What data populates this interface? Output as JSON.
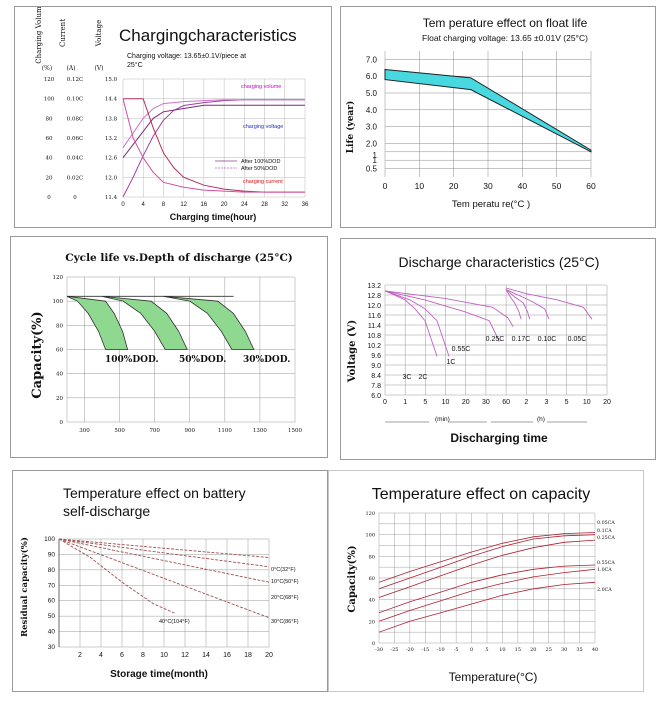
{
  "panels": {
    "charging": {
      "title": "Chargingcharacteristics",
      "subtitle_line1": "Charging voltage: 13.65±0.1V/piece at",
      "subtitle_line2": "25°C",
      "axis_header": [
        "Charging Volume",
        "Current",
        "Voltage"
      ],
      "axis_units": [
        "(%)",
        "(A)",
        "(V)"
      ],
      "y_volume_ticks": [
        "120",
        "100",
        "80",
        "60",
        "40",
        "20",
        "0"
      ],
      "y_current_ticks": [
        "0.12C",
        "0.10C",
        "0.08C",
        "0.06C",
        "0.04C",
        "0.02C",
        "0"
      ],
      "y_voltage_ticks": [
        "15.0",
        "14.4",
        "13.8",
        "13.2",
        "12.6",
        "12.0",
        "11.4"
      ],
      "x_ticks": [
        "0",
        "4",
        "8",
        "12",
        "16",
        "20",
        "24",
        "28",
        "32",
        "36"
      ],
      "xlabel": "Charging time(hour)",
      "series_labels": {
        "volume": "charging volume",
        "voltage": "charging voltage",
        "current": "charging current"
      },
      "legend": [
        "After 100%DOD",
        "After 50%DOD"
      ]
    },
    "float_life": {
      "title": "Tem perature    effect  on  float  life",
      "subtitle": "Float charging voltage:  13.65 ±0.01V (25°C)",
      "ylabel": "Life (year)",
      "y_ticks": [
        "7.0",
        "6.0",
        "5.0",
        "4.0",
        "3.0",
        "2.0",
        "1",
        "1",
        "0.5"
      ],
      "x_ticks": [
        "0",
        "10",
        "20",
        "30",
        "40",
        "50",
        "60"
      ],
      "xlabel": "Tem peratu  re(°C  )"
    },
    "cycle_life": {
      "title": "Cycle life vs.Depth of discharge (25°C)",
      "ylabel": "Capacity(%)",
      "y_ticks": [
        "120",
        "100",
        "80",
        "60",
        "40",
        "20",
        "0"
      ],
      "x_ticks": [
        "300",
        "500",
        "700",
        "900",
        "1100",
        "1300",
        "1500"
      ],
      "dod_labels": [
        "100%DOD.",
        "50%DOD.",
        "30%DOD."
      ]
    },
    "discharge": {
      "title": "Discharge characteristics (25°C)",
      "ylabel": "Voltage (V)",
      "y_ticks": [
        "13.2",
        "12.8",
        "12.0",
        "11.6",
        "11.4",
        "10.8",
        "10.2",
        "9.6",
        "9.0",
        "8.4",
        "7.8",
        "6.0"
      ],
      "x_ticks": [
        "0",
        "1",
        "5",
        "10",
        "20",
        "30",
        "60",
        "2",
        "3",
        "5",
        "10",
        "20"
      ],
      "unit_min": "(min)",
      "unit_h": "(h)",
      "xlabel": "Discharging time",
      "rate_labels": [
        "3C",
        "2C",
        "1C",
        "0.55C",
        "0.25C",
        "0.17C",
        "0.10C",
        "0.05C"
      ]
    },
    "self_discharge": {
      "title_line1": "Temperature effect on battery",
      "title_line2": "self-discharge",
      "ylabel": "Residual capacity(%)",
      "y_ticks": [
        "100",
        "90",
        "80",
        "70",
        "60",
        "50",
        "40",
        "30"
      ],
      "x_ticks": [
        "2",
        "4",
        "6",
        "8",
        "10",
        "12",
        "14",
        "16",
        "18",
        "20"
      ],
      "xlabel": "Storage time(month)",
      "series_labels": [
        "0°C(32°F)",
        "10°C(50°F)",
        "20°C(68°F)",
        "30°C(86°F)",
        "40°C(104°F)"
      ]
    },
    "capacity_temp": {
      "title": "Temperature effect on capacity",
      "ylabel": "Capacity(%)",
      "y_ticks": [
        "120",
        "100",
        "80",
        "60",
        "40",
        "20",
        "0"
      ],
      "x_ticks": [
        "-30",
        "-25",
        "-20",
        "-15",
        "-10",
        "-5",
        "0",
        "5",
        "10",
        "15",
        "20",
        "25",
        "30",
        "35",
        "40"
      ],
      "xlabel": "Temperature(°C)",
      "series_labels": [
        "0.05CA",
        "0.1CA",
        "0.25CA",
        "0.55CA",
        "1.0CA",
        "2.0CA"
      ]
    }
  },
  "chart_data": [
    {
      "type": "line",
      "title": "Chargingcharacteristics",
      "xlabel": "Charging time(hour)",
      "xlim": [
        0,
        36
      ],
      "series": [
        {
          "name": "charging volume (After 100%DOD)",
          "axis": "volume %",
          "x": [
            0,
            2,
            4,
            6,
            8,
            10,
            12,
            16,
            20,
            24,
            28,
            32,
            36
          ],
          "y": [
            0,
            20,
            42,
            62,
            78,
            88,
            93,
            96,
            98,
            99,
            99,
            99,
            99
          ]
        },
        {
          "name": "charging volume (After 50%DOD)",
          "axis": "volume %",
          "x": [
            0,
            2,
            4,
            6,
            8,
            12,
            16,
            20,
            24,
            28,
            32,
            36
          ],
          "y": [
            50,
            65,
            80,
            90,
            95,
            97,
            98,
            99,
            99,
            99,
            99,
            99
          ]
        },
        {
          "name": "charging voltage (After 100%DOD)",
          "axis": "voltage V",
          "x": [
            0,
            2,
            4,
            6,
            8,
            12,
            16,
            20,
            24,
            28,
            32,
            36
          ],
          "y": [
            12.6,
            13.0,
            13.4,
            13.8,
            14.0,
            14.1,
            14.2,
            14.2,
            14.2,
            14.2,
            14.2,
            14.2
          ]
        },
        {
          "name": "charging current (After 100%DOD)",
          "axis": "current C",
          "x": [
            0,
            4,
            6,
            8,
            10,
            12,
            16,
            20,
            24,
            28,
            32,
            36
          ],
          "y": [
            0.1,
            0.1,
            0.07,
            0.045,
            0.03,
            0.02,
            0.012,
            0.008,
            0.006,
            0.005,
            0.005,
            0.005
          ]
        },
        {
          "name": "charging current (After 50%DOD)",
          "axis": "current C",
          "x": [
            0,
            2,
            4,
            6,
            8,
            12,
            16,
            20,
            24,
            28,
            32,
            36
          ],
          "y": [
            0.1,
            0.06,
            0.04,
            0.025,
            0.015,
            0.01,
            0.007,
            0.006,
            0.005,
            0.005,
            0.005,
            0.005
          ]
        }
      ]
    },
    {
      "type": "area",
      "title": "Tem perature    effect  on  float  life",
      "xlabel": "Tem peratu  re(°C  )",
      "ylabel": "Life (year)",
      "xlim": [
        0,
        60
      ],
      "ylim": [
        0,
        7
      ],
      "series": [
        {
          "name": "upper",
          "x": [
            0,
            25,
            60
          ],
          "y": [
            6.4,
            5.9,
            1.6
          ]
        },
        {
          "name": "lower",
          "x": [
            0,
            25,
            60
          ],
          "y": [
            5.8,
            5.2,
            1.5
          ]
        }
      ]
    },
    {
      "type": "area",
      "title": "Cycle life vs.Depth of discharge (25°C)",
      "ylabel": "Capacity(%)",
      "xlim": [
        200,
        1500
      ],
      "ylim": [
        0,
        120
      ],
      "series": [
        {
          "name": "100%DOD.",
          "x": [
            200,
            260,
            320,
            380,
            420
          ],
          "y": [
            104,
            100,
            90,
            75,
            60
          ]
        },
        {
          "name": "50%DOD.",
          "x": [
            400,
            520,
            620,
            700,
            760
          ],
          "y": [
            104,
            100,
            90,
            75,
            60
          ]
        },
        {
          "name": "30%DOD.",
          "x": [
            750,
            900,
            1000,
            1080,
            1140
          ],
          "y": [
            104,
            100,
            90,
            75,
            60
          ]
        }
      ]
    },
    {
      "type": "line",
      "title": "Discharge characteristics (25°C)",
      "xlabel": "Discharging time",
      "ylabel": "Voltage (V)",
      "series": [
        {
          "name": "3C",
          "x_minutes": [
            0,
            1,
            3,
            5,
            8
          ],
          "y": [
            13.0,
            12.4,
            11.8,
            11.0,
            8.6
          ]
        },
        {
          "name": "2C",
          "x_minutes": [
            0,
            2,
            5,
            8,
            12
          ],
          "y": [
            13.0,
            12.4,
            11.8,
            11.0,
            8.6
          ]
        },
        {
          "name": "1C",
          "x_minutes": [
            0,
            5,
            20,
            35,
            50
          ],
          "y": [
            13.0,
            12.4,
            11.6,
            11.0,
            9.6
          ]
        },
        {
          "name": "0.55C",
          "x_minutes": [
            0,
            10,
            40,
            70,
            100
          ],
          "y": [
            13.0,
            12.5,
            11.9,
            11.2,
            10.6
          ]
        },
        {
          "name": "0.25C",
          "x_hours": [
            0,
            1,
            2,
            3,
            3.5
          ],
          "y": [
            13.1,
            12.6,
            12.2,
            11.6,
            11.1
          ]
        },
        {
          "name": "0.17C",
          "x_hours": [
            0,
            2,
            4,
            5,
            5.5
          ],
          "y": [
            13.1,
            12.6,
            12.2,
            11.6,
            11.1
          ]
        },
        {
          "name": "0.10C",
          "x_hours": [
            0,
            3,
            6,
            9,
            10
          ],
          "y": [
            13.1,
            12.7,
            12.3,
            11.8,
            11.1
          ]
        },
        {
          "name": "0.05C",
          "x_hours": [
            0,
            5,
            12,
            18,
            20
          ],
          "y": [
            13.2,
            12.8,
            12.4,
            11.9,
            11.1
          ]
        }
      ]
    },
    {
      "type": "line",
      "title": "Temperature effect on battery self-discharge",
      "xlabel": "Storage time(month)",
      "ylabel": "Residual capacity(%)",
      "xlim": [
        0,
        20
      ],
      "ylim": [
        30,
        100
      ],
      "series": [
        {
          "name": "0°C(32°F)",
          "x": [
            0,
            20
          ],
          "y": [
            100,
            88
          ]
        },
        {
          "name": "10°C(50°F)",
          "x": [
            0,
            20
          ],
          "y": [
            100,
            82
          ]
        },
        {
          "name": "20°C(68°F)",
          "x": [
            0,
            20
          ],
          "y": [
            100,
            72
          ]
        },
        {
          "name": "30°C(86°F)",
          "x": [
            0,
            20
          ],
          "y": [
            100,
            49
          ]
        },
        {
          "name": "40°C(104°F)",
          "x": [
            0,
            3,
            6,
            9,
            11
          ],
          "y": [
            100,
            88,
            72,
            58,
            52
          ]
        }
      ]
    },
    {
      "type": "line",
      "title": "Temperature effect on capacity",
      "xlabel": "Temperature(°C)",
      "ylabel": "Capacity(%)",
      "xlim": [
        -30,
        40
      ],
      "ylim": [
        0,
        120
      ],
      "series": [
        {
          "name": "0.05CA",
          "x": [
            -30,
            -20,
            -10,
            0,
            10,
            20,
            30,
            40
          ],
          "y": [
            56,
            66,
            75,
            84,
            92,
            98,
            101,
            102
          ]
        },
        {
          "name": "0.1CA",
          "x": [
            -30,
            -20,
            -10,
            0,
            10,
            20,
            30,
            40
          ],
          "y": [
            50,
            60,
            70,
            80,
            89,
            96,
            99,
            100
          ]
        },
        {
          "name": "0.25CA",
          "x": [
            -30,
            -20,
            -10,
            0,
            10,
            20,
            30,
            40
          ],
          "y": [
            42,
            52,
            62,
            72,
            81,
            88,
            93,
            95
          ]
        },
        {
          "name": "0.55CA",
          "x": [
            -30,
            -20,
            -10,
            0,
            10,
            20,
            30,
            40
          ],
          "y": [
            28,
            38,
            47,
            56,
            63,
            68,
            71,
            72
          ]
        },
        {
          "name": "1.0CA",
          "x": [
            -30,
            -20,
            -10,
            0,
            10,
            20,
            30,
            40
          ],
          "y": [
            20,
            30,
            39,
            48,
            55,
            61,
            65,
            68
          ]
        },
        {
          "name": "2.0CA",
          "x": [
            -30,
            -20,
            -10,
            0,
            10,
            20,
            30,
            40
          ],
          "y": [
            10,
            20,
            28,
            36,
            44,
            50,
            54,
            56
          ]
        }
      ]
    }
  ]
}
